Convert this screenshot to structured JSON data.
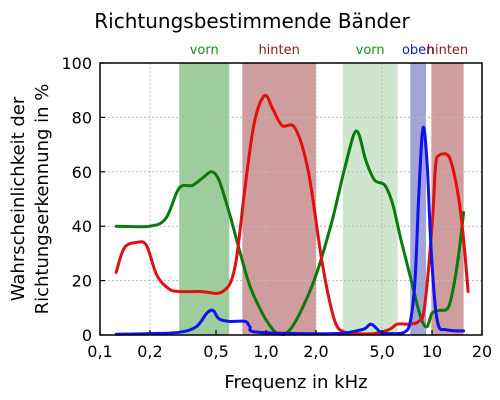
{
  "chart_data": {
    "type": "line",
    "title": "Richtungsbestimmende Bänder",
    "xlabel": "Frequenz in kHz",
    "ylabel_line1": "Wahrscheinlichkeit der",
    "ylabel_line2": "Richtungserkennung in %",
    "x_scale": "log",
    "xlim": [
      0.1,
      20
    ],
    "ylim": [
      0,
      100
    ],
    "grid": true,
    "x_ticks": [
      {
        "value": 0.1,
        "label": "0,1"
      },
      {
        "value": 0.2,
        "label": "0,2"
      },
      {
        "value": 0.5,
        "label": "0,5"
      },
      {
        "value": 1.0,
        "label": "1,0"
      },
      {
        "value": 2.0,
        "label": "2,0"
      },
      {
        "value": 5.0,
        "label": "5,0"
      },
      {
        "value": 10,
        "label": "10"
      },
      {
        "value": 20,
        "label": "20"
      }
    ],
    "y_ticks": [
      {
        "value": 0,
        "label": "0"
      },
      {
        "value": 20,
        "label": "20"
      },
      {
        "value": 40,
        "label": "40"
      },
      {
        "value": 60,
        "label": "60"
      },
      {
        "value": 80,
        "label": "80"
      },
      {
        "value": 100,
        "label": "100"
      }
    ],
    "bands": [
      {
        "label": "vorn",
        "from": 0.3,
        "to": 0.6,
        "color": "#3c9a3c",
        "opacity": 0.5,
        "label_color": "#1e8c1e"
      },
      {
        "label": "hinten",
        "from": 0.72,
        "to": 2.0,
        "color": "#a03c3c",
        "opacity": 0.5,
        "label_color": "#8b1a1a"
      },
      {
        "label": "vorn",
        "from": 2.9,
        "to": 6.2,
        "color": "#3c9a3c",
        "opacity": 0.25,
        "label_color": "#1e8c1e"
      },
      {
        "label": "oben",
        "from": 7.4,
        "to": 9.2,
        "color": "#4a4ab0",
        "opacity": 0.5,
        "label_color": "#1a1aa0"
      },
      {
        "label": "hinten",
        "from": 9.9,
        "to": 15.5,
        "color": "#a03c3c",
        "opacity": 0.5,
        "label_color": "#8b1a1a"
      }
    ],
    "series": [
      {
        "color": "#0a7a0a",
        "points": [
          [
            0.125,
            40
          ],
          [
            0.2,
            40
          ],
          [
            0.25,
            43
          ],
          [
            0.3,
            54
          ],
          [
            0.36,
            55
          ],
          [
            0.42,
            58
          ],
          [
            0.47,
            60
          ],
          [
            0.52,
            57
          ],
          [
            0.6,
            45
          ],
          [
            0.7,
            30
          ],
          [
            0.8,
            18
          ],
          [
            0.95,
            8
          ],
          [
            1.1,
            2
          ],
          [
            1.2,
            0.5
          ],
          [
            1.35,
            1
          ],
          [
            1.6,
            8
          ],
          [
            2.0,
            22
          ],
          [
            2.5,
            42
          ],
          [
            3.0,
            62
          ],
          [
            3.5,
            75
          ],
          [
            4.0,
            64
          ],
          [
            4.5,
            57
          ],
          [
            5.2,
            55
          ],
          [
            5.8,
            48
          ],
          [
            6.5,
            35
          ],
          [
            7.5,
            20
          ],
          [
            8.5,
            7
          ],
          [
            9.3,
            3
          ],
          [
            10,
            8
          ],
          [
            11,
            9
          ],
          [
            12.5,
            10
          ],
          [
            13.5,
            18
          ],
          [
            14.5,
            30
          ],
          [
            15.5,
            45
          ]
        ]
      },
      {
        "color": "#e01010",
        "points": [
          [
            0.125,
            23
          ],
          [
            0.14,
            32
          ],
          [
            0.165,
            34
          ],
          [
            0.19,
            33
          ],
          [
            0.22,
            22
          ],
          [
            0.26,
            17
          ],
          [
            0.3,
            16
          ],
          [
            0.4,
            16
          ],
          [
            0.55,
            16
          ],
          [
            0.65,
            25
          ],
          [
            0.75,
            55
          ],
          [
            0.85,
            78
          ],
          [
            0.98,
            88
          ],
          [
            1.1,
            83
          ],
          [
            1.25,
            77
          ],
          [
            1.5,
            76
          ],
          [
            1.8,
            60
          ],
          [
            2.2,
            25
          ],
          [
            2.6,
            5
          ],
          [
            3.0,
            1
          ],
          [
            3.4,
            0.5
          ],
          [
            4.5,
            0.5
          ],
          [
            5.5,
            2
          ],
          [
            6.2,
            4
          ],
          [
            7.3,
            4
          ],
          [
            8.3,
            5
          ],
          [
            9.0,
            10
          ],
          [
            10.0,
            40
          ],
          [
            10.5,
            62
          ],
          [
            11,
            66
          ],
          [
            12.5,
            66
          ],
          [
            13.5,
            60
          ],
          [
            14.5,
            50
          ],
          [
            15.5,
            35
          ],
          [
            16.5,
            16
          ]
        ]
      },
      {
        "color": "#0a14f0",
        "points": [
          [
            0.125,
            0.3
          ],
          [
            0.2,
            0.5
          ],
          [
            0.3,
            1
          ],
          [
            0.38,
            3
          ],
          [
            0.44,
            8
          ],
          [
            0.48,
            9
          ],
          [
            0.52,
            6
          ],
          [
            0.6,
            5
          ],
          [
            0.75,
            5
          ],
          [
            0.8,
            3
          ],
          [
            0.9,
            1
          ],
          [
            2.5,
            0.5
          ],
          [
            3.8,
            2
          ],
          [
            4.3,
            4
          ],
          [
            4.9,
            1
          ],
          [
            5.5,
            0.5
          ],
          [
            6.8,
            1
          ],
          [
            7.4,
            5
          ],
          [
            7.9,
            20
          ],
          [
            8.3,
            50
          ],
          [
            8.7,
            73
          ],
          [
            9.0,
            75
          ],
          [
            9.4,
            60
          ],
          [
            9.8,
            35
          ],
          [
            10.4,
            12
          ],
          [
            11,
            3
          ],
          [
            12,
            2
          ],
          [
            14,
            1.5
          ],
          [
            15.5,
            1.5
          ]
        ]
      }
    ]
  }
}
